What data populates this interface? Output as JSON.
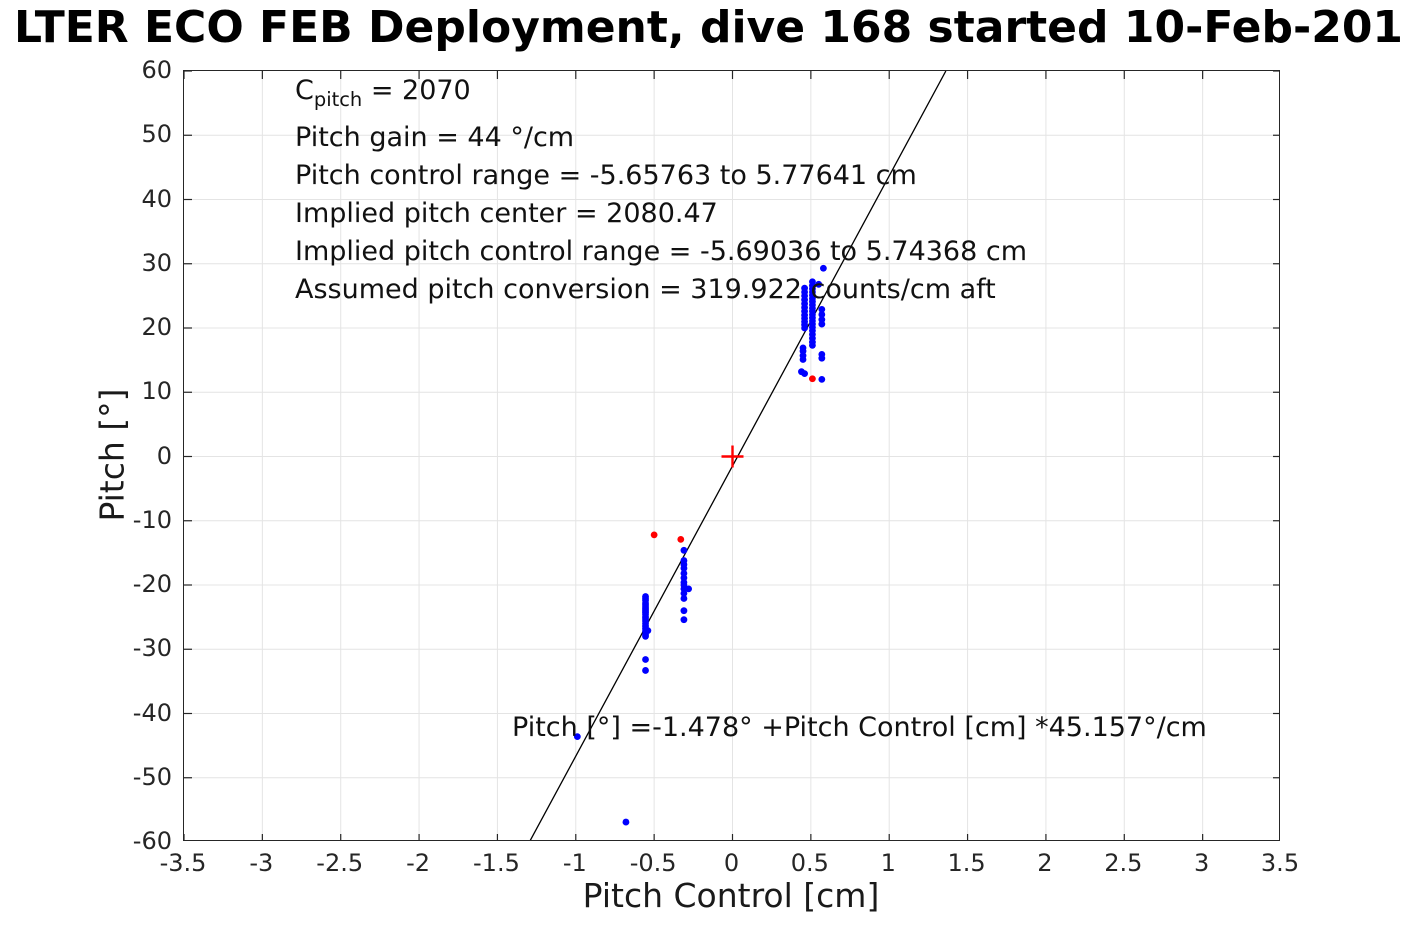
{
  "chart_data": {
    "type": "scatter",
    "title": "LTER ECO FEB Deployment, dive 168 started 10-Feb-201",
    "xlabel": "Pitch Control [cm]",
    "ylabel": "Pitch [°]",
    "xlim": [
      -3.5,
      3.5
    ],
    "ylim": [
      -60,
      60
    ],
    "xticks": [
      -3.5,
      -3,
      -2.5,
      -2,
      -1.5,
      -1,
      -0.5,
      0,
      0.5,
      1,
      1.5,
      2,
      2.5,
      3,
      3.5
    ],
    "yticks": [
      -60,
      -50,
      -40,
      -30,
      -20,
      -10,
      0,
      10,
      20,
      30,
      40,
      50,
      60
    ],
    "grid": true,
    "legend": "none",
    "annotation_c": {
      "base": "C",
      "sub": "pitch",
      "rest": " = 2070"
    },
    "stats_lines": [
      "Pitch gain = 44 °/cm",
      "Pitch control range = -5.65763 to 5.77641 cm",
      "Implied pitch center = 2080.47",
      "Implied pitch control range = -5.69036 to 5.74368 cm",
      "Assumed pitch conversion = 319.922 counts/cm aft"
    ],
    "fit_label": "Pitch [°] =-1.478° +Pitch Control [cm] *45.157°/cm",
    "fit": {
      "intercept_deg": -1.478,
      "slope_deg_per_cm": 45.157,
      "color": "#000000",
      "width": 1.3
    },
    "origin_marker": {
      "x": 0,
      "y": 0,
      "type": "plus",
      "color": "#ff0000",
      "size": 22,
      "stroke": 2.4
    },
    "marker_radius": 3.4,
    "colors": {
      "blue_points": "#0000ff",
      "red_points": "#ff0000",
      "grid": "#e4e4e4",
      "axis": "#262626"
    },
    "series": [
      {
        "name": "pitch-samples-blue",
        "color": "#0000ff",
        "points": [
          [
            0.46,
            26.2
          ],
          [
            0.46,
            25.6
          ],
          [
            0.46,
            25.0
          ],
          [
            0.46,
            24.4
          ],
          [
            0.46,
            23.8
          ],
          [
            0.46,
            23.2
          ],
          [
            0.46,
            22.6
          ],
          [
            0.46,
            22.0
          ],
          [
            0.46,
            21.5
          ],
          [
            0.46,
            21.0
          ],
          [
            0.46,
            20.5
          ],
          [
            0.46,
            20.0
          ],
          [
            0.45,
            16.9
          ],
          [
            0.45,
            16.4
          ],
          [
            0.45,
            15.7
          ],
          [
            0.45,
            15.1
          ],
          [
            0.44,
            13.2
          ],
          [
            0.46,
            12.9
          ],
          [
            0.51,
            27.2
          ],
          [
            0.51,
            26.6
          ],
          [
            0.51,
            26.1
          ],
          [
            0.51,
            25.6
          ],
          [
            0.51,
            25.1
          ],
          [
            0.51,
            24.6
          ],
          [
            0.51,
            24.1
          ],
          [
            0.51,
            23.6
          ],
          [
            0.51,
            23.1
          ],
          [
            0.51,
            22.6
          ],
          [
            0.51,
            22.1
          ],
          [
            0.51,
            21.6
          ],
          [
            0.51,
            21.1
          ],
          [
            0.51,
            20.6
          ],
          [
            0.51,
            20.1
          ],
          [
            0.51,
            19.6
          ],
          [
            0.51,
            19.0
          ],
          [
            0.51,
            18.4
          ],
          [
            0.51,
            17.8
          ],
          [
            0.51,
            17.3
          ],
          [
            0.58,
            29.3
          ],
          [
            0.55,
            26.8
          ],
          [
            0.57,
            22.9
          ],
          [
            0.57,
            22.1
          ],
          [
            0.57,
            21.3
          ],
          [
            0.57,
            20.6
          ],
          [
            0.57,
            15.9
          ],
          [
            0.57,
            15.3
          ],
          [
            0.57,
            12.0
          ],
          [
            -0.31,
            -14.6
          ],
          [
            -0.31,
            -16.2
          ],
          [
            -0.31,
            -16.8
          ],
          [
            -0.31,
            -17.4
          ],
          [
            -0.31,
            -18.2
          ],
          [
            -0.31,
            -18.9
          ],
          [
            -0.31,
            -19.6
          ],
          [
            -0.31,
            -20.0
          ],
          [
            -0.31,
            -20.6
          ],
          [
            -0.31,
            -21.3
          ],
          [
            -0.31,
            -22.1
          ],
          [
            -0.31,
            -24.0
          ],
          [
            -0.31,
            -25.4
          ],
          [
            -0.28,
            -20.6
          ],
          [
            -0.555,
            -21.8
          ],
          [
            -0.555,
            -22.1
          ],
          [
            -0.555,
            -22.4
          ],
          [
            -0.555,
            -22.8
          ],
          [
            -0.555,
            -23.1
          ],
          [
            -0.555,
            -23.4
          ],
          [
            -0.555,
            -23.7
          ],
          [
            -0.555,
            -24.0
          ],
          [
            -0.555,
            -24.3
          ],
          [
            -0.555,
            -24.6
          ],
          [
            -0.555,
            -25.0
          ],
          [
            -0.555,
            -25.3
          ],
          [
            -0.555,
            -25.6
          ],
          [
            -0.555,
            -26.0
          ],
          [
            -0.555,
            -26.4
          ],
          [
            -0.555,
            -26.8
          ],
          [
            -0.54,
            -27.1
          ],
          [
            -0.555,
            -27.2
          ],
          [
            -0.555,
            -27.7
          ],
          [
            -0.555,
            -28.0
          ],
          [
            -0.555,
            -31.6
          ],
          [
            -0.555,
            -33.3
          ],
          [
            -0.99,
            -43.6
          ],
          [
            -0.68,
            -56.9
          ]
        ]
      },
      {
        "name": "pitch-samples-red",
        "color": "#ff0000",
        "points": [
          [
            0.51,
            12.1
          ],
          [
            -0.33,
            -12.9
          ],
          [
            -0.5,
            -12.2
          ]
        ]
      }
    ]
  }
}
